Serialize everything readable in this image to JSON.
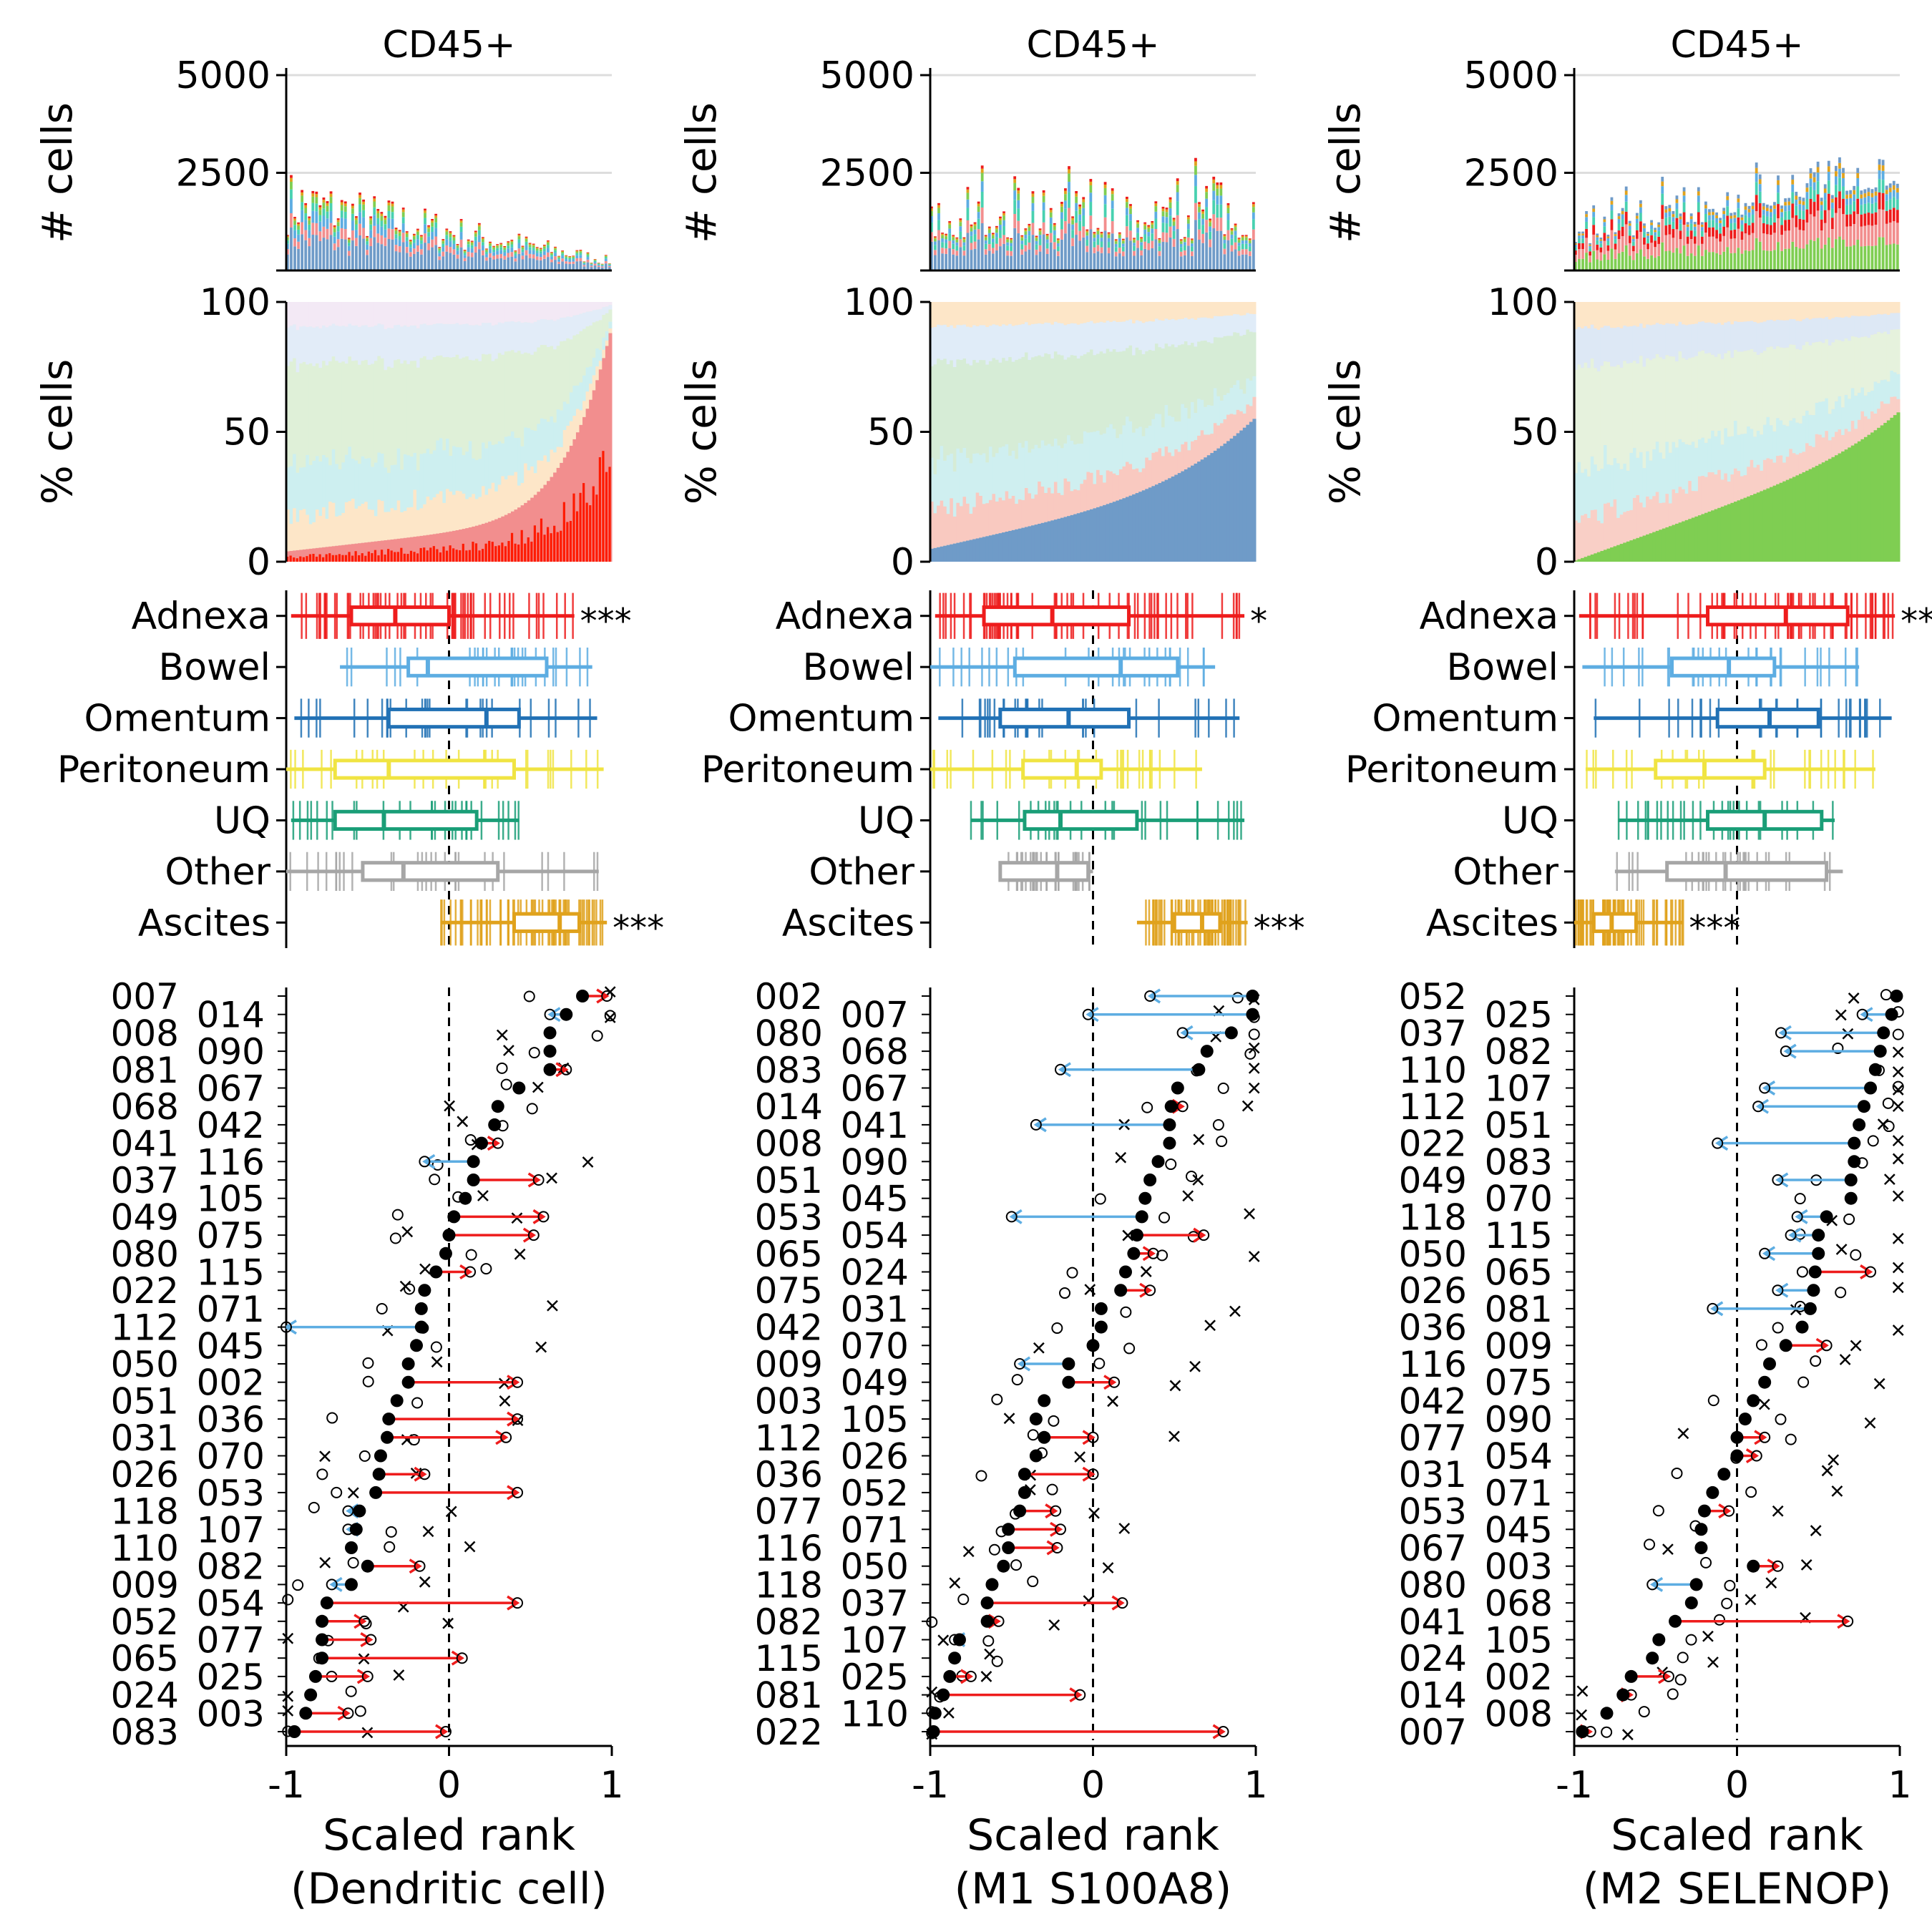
{
  "colors": {
    "adnexa": "#ee1c1c",
    "bowel": "#5dade2",
    "omentum": "#2171b5",
    "peritoneum": "#f0e442",
    "uq": "#1a9e77",
    "other": "#a6a6a6",
    "ascites": "#e0a21c",
    "up_arrow": "#ee1c1c",
    "down_arrow": "#5dade2",
    "m1_fill": "#6f9bc8",
    "m2_fill": "#7fce52",
    "dc_fill": "#f28e8e",
    "dc_dark": "#ff1a00"
  },
  "labels": {
    "ylabel_counts": "# cells",
    "ylabel_percent": "% cells",
    "title": "CD45+",
    "xlabel_line1": "Scaled rank",
    "count_ticks": [
      "5000",
      "2500"
    ],
    "percent_ticks": [
      "100",
      "50",
      "0"
    ],
    "x_ticks": [
      "-1",
      "0",
      "1"
    ]
  },
  "chart_data": [
    {
      "type": "composite",
      "title": "CD45+",
      "xlabel": "Scaled rank (Dendritic cell)",
      "xlabel_line2": "(Dendritic cell)",
      "fill_key": "dc_fill",
      "ylim_counts": [
        0,
        5000
      ],
      "ylim_percent": [
        0,
        100
      ],
      "xlim": [
        -1,
        1
      ],
      "site_boxes": [
        {
          "site": "Adnexa",
          "key": "adnexa",
          "whisker": [
            -0.97,
            0.77
          ],
          "q1": -0.6,
          "median": -0.33,
          "q3": 0.0,
          "sig": "***"
        },
        {
          "site": "Bowel",
          "key": "bowel",
          "whisker": [
            -0.67,
            0.88
          ],
          "q1": -0.25,
          "median": -0.13,
          "q3": 0.6,
          "sig": ""
        },
        {
          "site": "Omentum",
          "key": "omentum",
          "whisker": [
            -0.95,
            0.91
          ],
          "q1": -0.37,
          "median": 0.23,
          "q3": 0.43,
          "sig": ""
        },
        {
          "site": "Peritoneum",
          "key": "peritoneum",
          "whisker": [
            -1.0,
            0.95
          ],
          "q1": -0.7,
          "median": -0.37,
          "q3": 0.4,
          "sig": ""
        },
        {
          "site": "UQ",
          "key": "uq",
          "whisker": [
            -0.97,
            0.43
          ],
          "q1": -0.7,
          "median": -0.4,
          "q3": 0.17,
          "sig": ""
        },
        {
          "site": "Other",
          "key": "other",
          "whisker": [
            -1.0,
            0.92
          ],
          "q1": -0.53,
          "median": -0.28,
          "q3": 0.3,
          "sig": ""
        },
        {
          "site": "Ascites",
          "key": "ascites",
          "whisker": [
            -0.05,
            0.97
          ],
          "q1": 0.4,
          "median": 0.68,
          "q3": 0.8,
          "sig": "***"
        }
      ],
      "patients": [
        {
          "id": "007",
          "x": 0.82,
          "to": 0.97
        },
        {
          "id": "014",
          "x": 0.72,
          "to": 0.62
        },
        {
          "id": "008",
          "x": 0.62,
          "to": 0.62
        },
        {
          "id": "090",
          "x": 0.62,
          "to": 0.62
        },
        {
          "id": "081",
          "x": 0.62,
          "to": 0.72
        },
        {
          "id": "067",
          "x": 0.43,
          "to": 0.43
        },
        {
          "id": "068",
          "x": 0.3,
          "to": 0.3
        },
        {
          "id": "042",
          "x": 0.28,
          "to": 0.28
        },
        {
          "id": "041",
          "x": 0.2,
          "to": 0.3
        },
        {
          "id": "116",
          "x": 0.15,
          "to": -0.15
        },
        {
          "id": "037",
          "x": 0.15,
          "to": 0.55
        },
        {
          "id": "105",
          "x": 0.1,
          "to": 0.1
        },
        {
          "id": "049",
          "x": 0.03,
          "to": 0.58
        },
        {
          "id": "075",
          "x": 0.0,
          "to": 0.52
        },
        {
          "id": "080",
          "x": -0.02,
          "to": -0.02
        },
        {
          "id": "115",
          "x": -0.08,
          "to": 0.13
        },
        {
          "id": "022",
          "x": -0.15,
          "to": -0.15
        },
        {
          "id": "071",
          "x": -0.17,
          "to": -0.17
        },
        {
          "id": "112",
          "x": -0.17,
          "to": -1.0
        },
        {
          "id": "045",
          "x": -0.2,
          "to": -0.2
        },
        {
          "id": "050",
          "x": -0.25,
          "to": -0.25
        },
        {
          "id": "002",
          "x": -0.25,
          "to": 0.42
        },
        {
          "id": "051",
          "x": -0.32,
          "to": -0.32
        },
        {
          "id": "036",
          "x": -0.37,
          "to": 0.42
        },
        {
          "id": "031",
          "x": -0.38,
          "to": 0.35
        },
        {
          "id": "070",
          "x": -0.42,
          "to": -0.42
        },
        {
          "id": "026",
          "x": -0.43,
          "to": -0.15
        },
        {
          "id": "053",
          "x": -0.45,
          "to": 0.42
        },
        {
          "id": "118",
          "x": -0.55,
          "to": -0.62
        },
        {
          "id": "107",
          "x": -0.57,
          "to": -0.62
        },
        {
          "id": "110",
          "x": -0.6,
          "to": -0.6
        },
        {
          "id": "082",
          "x": -0.5,
          "to": -0.18
        },
        {
          "id": "009",
          "x": -0.6,
          "to": -0.72
        },
        {
          "id": "054",
          "x": -0.75,
          "to": 0.42
        },
        {
          "id": "052",
          "x": -0.78,
          "to": -0.52
        },
        {
          "id": "077",
          "x": -0.78,
          "to": -0.48
        },
        {
          "id": "065",
          "x": -0.78,
          "to": 0.08
        },
        {
          "id": "025",
          "x": -0.82,
          "to": -0.5
        },
        {
          "id": "024",
          "x": -0.85,
          "to": -0.85
        },
        {
          "id": "003",
          "x": -0.88,
          "to": -0.62
        },
        {
          "id": "083",
          "x": -0.95,
          "to": -0.02
        }
      ]
    },
    {
      "type": "composite",
      "title": "CD45+",
      "xlabel": "Scaled rank (M1 S100A8)",
      "xlabel_line2": "(M1 S100A8)",
      "fill_key": "m1_fill",
      "ylim_counts": [
        0,
        5000
      ],
      "ylim_percent": [
        0,
        100
      ],
      "xlim": [
        -1,
        1
      ],
      "site_boxes": [
        {
          "site": "Adnexa",
          "key": "adnexa",
          "whisker": [
            -0.97,
            0.93
          ],
          "q1": -0.67,
          "median": -0.25,
          "q3": 0.22,
          "sig": "*"
        },
        {
          "site": "Bowel",
          "key": "bowel",
          "whisker": [
            -1.0,
            0.75
          ],
          "q1": -0.48,
          "median": 0.17,
          "q3": 0.52,
          "sig": ""
        },
        {
          "site": "Omentum",
          "key": "omentum",
          "whisker": [
            -0.95,
            0.9
          ],
          "q1": -0.57,
          "median": -0.15,
          "q3": 0.22,
          "sig": ""
        },
        {
          "site": "Peritoneum",
          "key": "peritoneum",
          "whisker": [
            -1.0,
            0.67
          ],
          "q1": -0.43,
          "median": -0.1,
          "q3": 0.05,
          "sig": ""
        },
        {
          "site": "UQ",
          "key": "uq",
          "whisker": [
            -0.75,
            0.93
          ],
          "q1": -0.42,
          "median": -0.2,
          "q3": 0.27,
          "sig": ""
        },
        {
          "site": "Other",
          "key": "other",
          "whisker": [
            -0.57,
            0.0
          ],
          "q1": -0.57,
          "median": -0.22,
          "q3": -0.03,
          "sig": ""
        },
        {
          "site": "Ascites",
          "key": "ascites",
          "whisker": [
            0.27,
            0.95
          ],
          "q1": 0.5,
          "median": 0.67,
          "q3": 0.78,
          "sig": "***"
        }
      ],
      "patients": [
        {
          "id": "002",
          "x": 0.98,
          "to": 0.35
        },
        {
          "id": "007",
          "x": 0.98,
          "to": -0.03
        },
        {
          "id": "080",
          "x": 0.85,
          "to": 0.55
        },
        {
          "id": "068",
          "x": 0.7,
          "to": 0.7
        },
        {
          "id": "083",
          "x": 0.65,
          "to": -0.2
        },
        {
          "id": "067",
          "x": 0.52,
          "to": 0.52
        },
        {
          "id": "014",
          "x": 0.48,
          "to": 0.55
        },
        {
          "id": "041",
          "x": 0.47,
          "to": -0.35
        },
        {
          "id": "008",
          "x": 0.47,
          "to": 0.47
        },
        {
          "id": "090",
          "x": 0.4,
          "to": 0.4
        },
        {
          "id": "051",
          "x": 0.35,
          "to": 0.35
        },
        {
          "id": "045",
          "x": 0.32,
          "to": 0.32
        },
        {
          "id": "053",
          "x": 0.3,
          "to": -0.5
        },
        {
          "id": "054",
          "x": 0.27,
          "to": 0.68
        },
        {
          "id": "065",
          "x": 0.25,
          "to": 0.37
        },
        {
          "id": "024",
          "x": 0.2,
          "to": 0.2
        },
        {
          "id": "075",
          "x": 0.17,
          "to": 0.35
        },
        {
          "id": "031",
          "x": 0.05,
          "to": 0.05
        },
        {
          "id": "042",
          "x": 0.05,
          "to": 0.05
        },
        {
          "id": "070",
          "x": 0.0,
          "to": 0.0
        },
        {
          "id": "009",
          "x": -0.15,
          "to": -0.45
        },
        {
          "id": "049",
          "x": -0.15,
          "to": 0.13
        },
        {
          "id": "003",
          "x": -0.3,
          "to": -0.3
        },
        {
          "id": "105",
          "x": -0.35,
          "to": -0.35
        },
        {
          "id": "112",
          "x": -0.3,
          "to": 0.0
        },
        {
          "id": "026",
          "x": -0.35,
          "to": -0.35
        },
        {
          "id": "036",
          "x": -0.42,
          "to": 0.0
        },
        {
          "id": "052",
          "x": -0.42,
          "to": -0.42
        },
        {
          "id": "077",
          "x": -0.45,
          "to": -0.23
        },
        {
          "id": "071",
          "x": -0.52,
          "to": -0.2
        },
        {
          "id": "116",
          "x": -0.52,
          "to": -0.22
        },
        {
          "id": "050",
          "x": -0.55,
          "to": -0.55
        },
        {
          "id": "118",
          "x": -0.62,
          "to": -0.62
        },
        {
          "id": "037",
          "x": -0.65,
          "to": 0.18
        },
        {
          "id": "082",
          "x": -0.65,
          "to": -0.58
        },
        {
          "id": "107",
          "x": -0.82,
          "to": -0.85
        },
        {
          "id": "115",
          "x": -0.85,
          "to": -0.85
        },
        {
          "id": "025",
          "x": -0.88,
          "to": -0.75
        },
        {
          "id": "081",
          "x": -0.92,
          "to": -0.08
        },
        {
          "id": "110",
          "x": -0.97,
          "to": -0.97
        },
        {
          "id": "022",
          "x": -0.98,
          "to": 0.8
        }
      ]
    },
    {
      "type": "composite",
      "title": "CD45+",
      "xlabel": "Scaled rank (M2 SELENOP)",
      "xlabel_line2": "(M2 SELENOP)",
      "fill_key": "m2_fill",
      "ylim_counts": [
        0,
        5000
      ],
      "ylim_percent": [
        0,
        100
      ],
      "xlim": [
        -1,
        1
      ],
      "site_boxes": [
        {
          "site": "Adnexa",
          "key": "adnexa",
          "whisker": [
            -0.97,
            0.97
          ],
          "q1": -0.18,
          "median": 0.3,
          "q3": 0.68,
          "sig": "***"
        },
        {
          "site": "Bowel",
          "key": "bowel",
          "whisker": [
            -0.95,
            0.75
          ],
          "q1": -0.4,
          "median": -0.05,
          "q3": 0.23,
          "sig": ""
        },
        {
          "site": "Omentum",
          "key": "omentum",
          "whisker": [
            -0.88,
            0.95
          ],
          "q1": -0.12,
          "median": 0.2,
          "q3": 0.5,
          "sig": ""
        },
        {
          "site": "Peritoneum",
          "key": "peritoneum",
          "whisker": [
            -0.93,
            0.85
          ],
          "q1": -0.5,
          "median": -0.2,
          "q3": 0.17,
          "sig": ""
        },
        {
          "site": "UQ",
          "key": "uq",
          "whisker": [
            -0.73,
            0.6
          ],
          "q1": -0.18,
          "median": 0.17,
          "q3": 0.52,
          "sig": ""
        },
        {
          "site": "Other",
          "key": "other",
          "whisker": [
            -0.75,
            0.65
          ],
          "q1": -0.43,
          "median": -0.07,
          "q3": 0.55,
          "sig": ""
        },
        {
          "site": "Ascites",
          "key": "ascites",
          "whisker": [
            -1.0,
            -0.33
          ],
          "q1": -0.88,
          "median": -0.77,
          "q3": -0.62,
          "sig": "***"
        }
      ],
      "patients": [
        {
          "id": "052",
          "x": 0.98,
          "to": 0.98
        },
        {
          "id": "025",
          "x": 0.95,
          "to": 0.77
        },
        {
          "id": "037",
          "x": 0.9,
          "to": 0.27
        },
        {
          "id": "082",
          "x": 0.88,
          "to": 0.3
        },
        {
          "id": "110",
          "x": 0.85,
          "to": 0.85
        },
        {
          "id": "107",
          "x": 0.82,
          "to": 0.17
        },
        {
          "id": "112",
          "x": 0.78,
          "to": 0.13
        },
        {
          "id": "051",
          "x": 0.75,
          "to": 0.75
        },
        {
          "id": "022",
          "x": 0.72,
          "to": -0.12
        },
        {
          "id": "083",
          "x": 0.72,
          "to": 0.72
        },
        {
          "id": "049",
          "x": 0.7,
          "to": 0.25
        },
        {
          "id": "070",
          "x": 0.7,
          "to": 0.7
        },
        {
          "id": "118",
          "x": 0.55,
          "to": 0.37
        },
        {
          "id": "115",
          "x": 0.5,
          "to": 0.33
        },
        {
          "id": "050",
          "x": 0.5,
          "to": 0.17
        },
        {
          "id": "065",
          "x": 0.48,
          "to": 0.82
        },
        {
          "id": "026",
          "x": 0.47,
          "to": 0.25
        },
        {
          "id": "081",
          "x": 0.45,
          "to": -0.15
        },
        {
          "id": "036",
          "x": 0.4,
          "to": 0.4
        },
        {
          "id": "009",
          "x": 0.3,
          "to": 0.55
        },
        {
          "id": "116",
          "x": 0.2,
          "to": 0.2
        },
        {
          "id": "075",
          "x": 0.17,
          "to": 0.17
        },
        {
          "id": "042",
          "x": 0.1,
          "to": 0.1
        },
        {
          "id": "090",
          "x": 0.05,
          "to": 0.05
        },
        {
          "id": "077",
          "x": 0.0,
          "to": 0.17
        },
        {
          "id": "054",
          "x": 0.0,
          "to": 0.12
        },
        {
          "id": "031",
          "x": -0.08,
          "to": -0.08
        },
        {
          "id": "071",
          "x": -0.15,
          "to": -0.15
        },
        {
          "id": "053",
          "x": -0.2,
          "to": -0.05
        },
        {
          "id": "045",
          "x": -0.22,
          "to": -0.22
        },
        {
          "id": "067",
          "x": -0.22,
          "to": -0.22
        },
        {
          "id": "003",
          "x": 0.1,
          "to": 0.25
        },
        {
          "id": "080",
          "x": -0.25,
          "to": -0.52
        },
        {
          "id": "068",
          "x": -0.28,
          "to": -0.28
        },
        {
          "id": "041",
          "x": -0.38,
          "to": 0.68
        },
        {
          "id": "105",
          "x": -0.48,
          "to": -0.48
        },
        {
          "id": "024",
          "x": -0.52,
          "to": -0.52
        },
        {
          "id": "002",
          "x": -0.65,
          "to": -0.42
        },
        {
          "id": "014",
          "x": -0.7,
          "to": -0.65
        },
        {
          "id": "008",
          "x": -0.8,
          "to": -0.8
        },
        {
          "id": "007",
          "x": -0.95,
          "to": -0.9
        }
      ]
    }
  ]
}
